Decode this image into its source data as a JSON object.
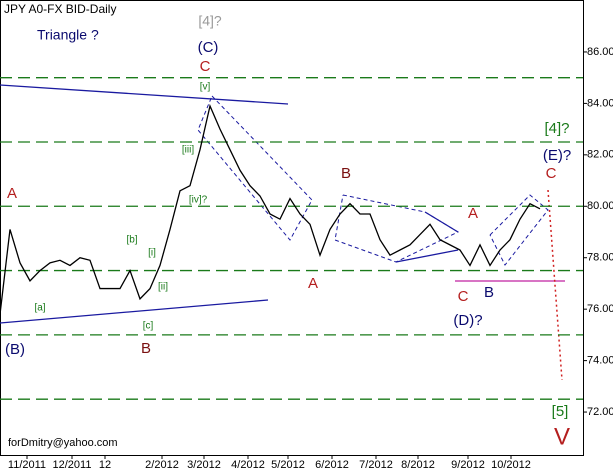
{
  "chart_data": {
    "type": "line",
    "title": "JPY A0-FX BID-Daily",
    "x": [
      0,
      1,
      2,
      3,
      4,
      5,
      6,
      7,
      8,
      9,
      10,
      11,
      12,
      13,
      14,
      15,
      16,
      17,
      18,
      19,
      20,
      21,
      22,
      23,
      24,
      25,
      26,
      27,
      28,
      29,
      30,
      31,
      32,
      33,
      34,
      35,
      36,
      37,
      38,
      39,
      40,
      41,
      42,
      43,
      44,
      45,
      46,
      47,
      48,
      49,
      50,
      51,
      52,
      53,
      54
    ],
    "series": [
      {
        "name": "JPY A0-FX BID",
        "color": "#000000",
        "values": [
          75.8,
          79.1,
          77.8,
          77.1,
          77.5,
          77.8,
          77.9,
          77.7,
          78.0,
          77.9,
          76.8,
          76.8,
          76.8,
          77.5,
          76.4,
          76.8,
          77.7,
          79.1,
          80.6,
          80.8,
          82.2,
          83.9,
          83.0,
          82.2,
          81.4,
          80.8,
          80.4,
          79.7,
          79.5,
          80.3,
          79.7,
          79.3,
          78.1,
          79.1,
          79.7,
          80.1,
          79.7,
          79.7,
          78.7,
          78.1,
          78.3,
          78.5,
          78.9,
          79.3,
          78.7,
          78.5,
          78.3,
          77.7,
          78.5,
          77.7,
          78.3,
          78.7,
          79.5,
          80.1,
          79.9
        ]
      }
    ],
    "xlim": [
      0,
      58.3
    ],
    "xticks": [
      {
        "value": 2.7,
        "label": "11/2011"
      },
      {
        "value": 7.2,
        "label": "12/2011"
      },
      {
        "value": 10.5,
        "label": "12"
      },
      {
        "value": 16.2,
        "label": "2/2012"
      },
      {
        "value": 20.4,
        "label": "3/2012"
      },
      {
        "value": 24.8,
        "label": "4/2012"
      },
      {
        "value": 28.8,
        "label": "5/2012"
      },
      {
        "value": 33.2,
        "label": "6/2012"
      },
      {
        "value": 37.6,
        "label": "7/2012"
      },
      {
        "value": 41.8,
        "label": "8/2012"
      },
      {
        "value": 46.8,
        "label": "9/2012"
      },
      {
        "value": 51.1,
        "label": "10/2012"
      }
    ],
    "ylim": [
      70.33,
      88.02
    ],
    "yticks": [
      {
        "value": 72,
        "label": "72.00"
      },
      {
        "value": 74,
        "label": "74.00"
      },
      {
        "value": 76,
        "label": "76.00"
      },
      {
        "value": 78,
        "label": "78.00"
      },
      {
        "value": 80,
        "label": "80.00"
      },
      {
        "value": 82,
        "label": "82.00"
      },
      {
        "value": 84,
        "label": "84.00"
      },
      {
        "value": 86,
        "label": "86.00"
      }
    ],
    "levels": [
      85,
      82.5,
      80,
      77.5,
      75,
      72.5
    ],
    "level_color": "#1a7a1a",
    "annotations": [
      "Triangle ?",
      "[4]?",
      "(C)",
      "C",
      "[v]",
      "[iv]?",
      "[iii]",
      "[ii]",
      "[i]",
      "[b]",
      "[a]",
      "[c]",
      "B",
      "A",
      "(B)",
      "B",
      "A",
      "A",
      "C",
      "B",
      "(D)?",
      "(E)?",
      "C",
      "[4]?",
      "[5]",
      "V",
      "forDmitry@yahoo.com"
    ]
  }
}
